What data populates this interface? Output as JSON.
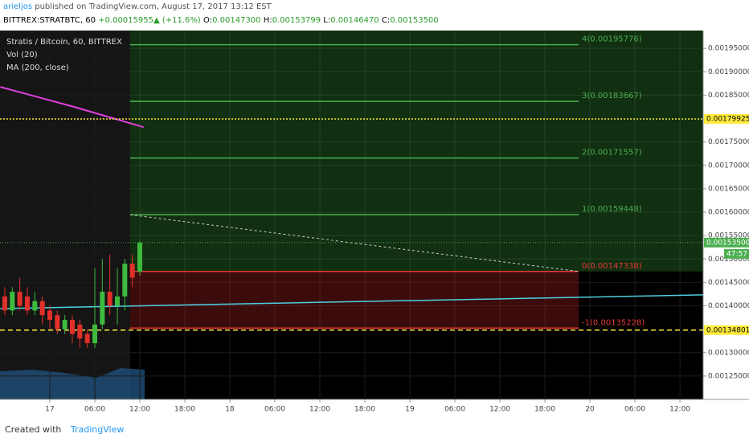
{
  "header": {
    "author": "arieljos",
    "published": "published on TradingView.com, August 17, 2017 13:12 EST",
    "symbol": "BITTREX:STRATBTC, 60",
    "change": "+0.00015955",
    "percent": "(+11.6%)",
    "quote": [
      {
        "label": "O:",
        "value": "0.00147300"
      },
      {
        "label": "H:",
        "value": "0.00153799"
      },
      {
        "label": "L:",
        "value": "0.00146470"
      },
      {
        "label": "C:",
        "value": "0.00153500"
      }
    ]
  },
  "chart_data": {
    "type": "candlestick",
    "legend": [
      "Stratis / Bitcoin, 60, BITTREX",
      "Vol (20)",
      "MA (200, close)"
    ],
    "up_color": "#3dbb3d",
    "down_color": "#e0302a",
    "candles": {
      "x": [
        -6,
        -5,
        -4,
        -3,
        -2,
        -1,
        0,
        1,
        2,
        3,
        4,
        5,
        6,
        7,
        8,
        9,
        10,
        11,
        12
      ],
      "open": [
        0.00142,
        0.00139,
        0.00143,
        0.00142,
        0.00139,
        0.00141,
        0.00139,
        0.00138,
        0.00135,
        0.00137,
        0.00136,
        0.00134,
        0.00132,
        0.00136,
        0.00143,
        0.0014,
        0.00142,
        0.00149,
        0.001473
      ],
      "high": [
        0.00144,
        0.00144,
        0.00146,
        0.00144,
        0.00143,
        0.00142,
        0.0014,
        0.00139,
        0.00138,
        0.00138,
        0.00137,
        0.00135,
        0.00148,
        0.0015,
        0.00151,
        0.00148,
        0.0015,
        0.00151,
        0.00153799
      ],
      "low": [
        0.00138,
        0.00138,
        0.00139,
        0.00138,
        0.00138,
        0.00136,
        0.00135,
        0.00134,
        0.00134,
        0.00132,
        0.00131,
        0.00131,
        0.00131,
        0.00135,
        0.00138,
        0.00136,
        0.00139,
        0.00144,
        0.0014647
      ],
      "close": [
        0.00139,
        0.00143,
        0.0014,
        0.00139,
        0.00141,
        0.00138,
        0.00137,
        0.00135,
        0.00137,
        0.00134,
        0.00133,
        0.00132,
        0.00136,
        0.00143,
        0.0014,
        0.00142,
        0.00149,
        0.00146,
        0.001535
      ]
    },
    "ma": {
      "color": "#e040e0",
      "x": [
        -6.6,
        3,
        12.5
      ],
      "values": [
        0.0018675,
        0.001826,
        0.0017816
      ]
    },
    "trendline": {
      "color": "#4dd0e1",
      "x": [
        -6.6,
        87.1
      ],
      "values": [
        0.0013941,
        0.0014233
      ]
    },
    "projection": {
      "color": "#cccccc",
      "x": [
        10.7,
        70.5
      ],
      "values": [
        0.00159448,
        0.00147338
      ]
    },
    "fib": {
      "x": [
        10.7,
        70.5
      ],
      "levels": [
        {
          "value": 0.00195776,
          "label": "4(0.00195776)",
          "color": "#4caf50"
        },
        {
          "value": 0.00183667,
          "label": "3(0.00183667)",
          "color": "#4caf50"
        },
        {
          "value": 0.00171557,
          "label": "2(0.00171557)",
          "color": "#4caf50"
        },
        {
          "value": 0.00159448,
          "label": "1(0.00159448)",
          "color": "#4caf50"
        },
        {
          "value": 0.00147338,
          "label": "0(0.00147338)",
          "color": "#e53935"
        },
        {
          "value": 0.00135228,
          "label": "-1(0.00135228)",
          "color": "#e53935"
        }
      ]
    },
    "hlines": [
      {
        "value": 0.00179925,
        "label": "0.00179925",
        "color": "#ffeb3b",
        "style": "dotted"
      },
      {
        "value": 0.00134801,
        "label": "0.00134801",
        "color": "#ffeb3b",
        "style": "dashed"
      }
    ],
    "last_price": {
      "value": 0.001535,
      "label": "0.00153500",
      "color": "#4caf50",
      "countdown": "47:57"
    },
    "ylim": [
      0.0012,
      0.001988
    ],
    "yticks": [
      {
        "value": 0.00195,
        "label": "0.00195000"
      },
      {
        "value": 0.0019,
        "label": "0.00190000"
      },
      {
        "value": 0.00185,
        "label": "0.00185000"
      },
      {
        "value": 0.00175,
        "label": "0.00175000"
      },
      {
        "value": 0.0017,
        "label": "0.00170000"
      },
      {
        "value": 0.00165,
        "label": "0.00165000"
      },
      {
        "value": 0.0016,
        "label": "0.00160000"
      },
      {
        "value": 0.00155,
        "label": "0.00155000"
      },
      {
        "value": 0.0015,
        "label": "0.00150000"
      },
      {
        "value": 0.00145,
        "label": "0.00145000"
      },
      {
        "value": 0.0014,
        "label": "0.00140000"
      },
      {
        "value": 0.0013,
        "label": "0.00130000"
      },
      {
        "value": 0.00125,
        "label": "0.00125000"
      }
    ],
    "xlim": [
      -6.64,
      87.1
    ],
    "xticks": [
      {
        "value": 0,
        "label": "17"
      },
      {
        "value": 6,
        "label": "06:00"
      },
      {
        "value": 12,
        "label": "12:00"
      },
      {
        "value": 18,
        "label": "18:00"
      },
      {
        "value": 24,
        "label": "18"
      },
      {
        "value": 30,
        "label": "06:00"
      },
      {
        "value": 36,
        "label": "12:00"
      },
      {
        "value": 42,
        "label": "18:00"
      },
      {
        "value": 48,
        "label": "19"
      },
      {
        "value": 54,
        "label": "06:00"
      },
      {
        "value": 60,
        "label": "12:00"
      },
      {
        "value": 66,
        "label": "18:00"
      },
      {
        "value": 72,
        "label": "20"
      },
      {
        "value": 78,
        "label": "06:00"
      },
      {
        "value": 84,
        "label": "12:00"
      }
    ],
    "grid": true
  },
  "footer": {
    "created": "Created with",
    "brand": "TradingView"
  }
}
